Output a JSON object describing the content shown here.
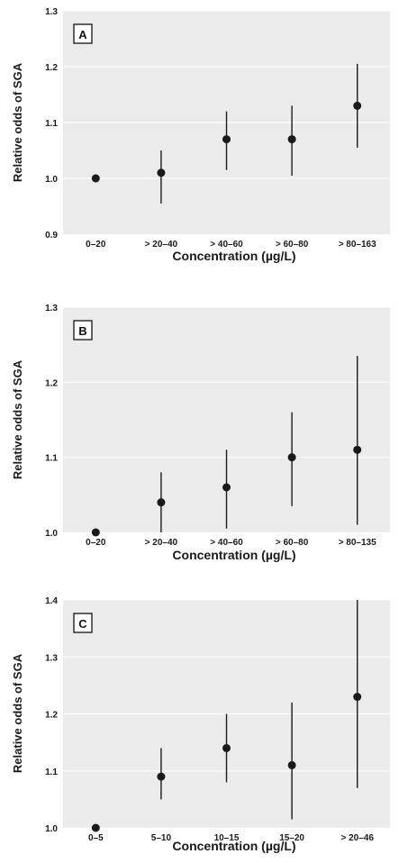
{
  "chart_data": [
    {
      "type": "scatter",
      "panel_label": "A",
      "xlabel": "Concentration (µg/L)",
      "ylabel": "Relative odds of SGA",
      "categories": [
        "0–20",
        "> 20–40",
        "> 40–60",
        "> 60–80",
        "> 80–163"
      ],
      "y": [
        1.0,
        1.01,
        1.07,
        1.07,
        1.13
      ],
      "ci_lower": [
        1.0,
        0.955,
        1.015,
        1.005,
        1.055
      ],
      "ci_upper": [
        1.0,
        1.05,
        1.12,
        1.13,
        1.205
      ],
      "ylim": [
        0.9,
        1.3
      ],
      "yticks": [
        0.9,
        1.0,
        1.1,
        1.2,
        1.3
      ],
      "ytick_labels": [
        "0.9",
        "1.0",
        "1.1",
        "1.2",
        "1.3"
      ],
      "grid": "horizontal"
    },
    {
      "type": "scatter",
      "panel_label": "B",
      "xlabel": "Concentration (µg/L)",
      "ylabel": "Relative odds of SGA",
      "categories": [
        "0–20",
        "> 20–40",
        "> 40–60",
        "> 60–80",
        "> 80–135"
      ],
      "y": [
        1.0,
        1.04,
        1.06,
        1.1,
        1.11
      ],
      "ci_lower": [
        1.0,
        1.0,
        1.005,
        1.035,
        1.01
      ],
      "ci_upper": [
        1.0,
        1.08,
        1.11,
        1.16,
        1.235
      ],
      "ylim": [
        1.0,
        1.3
      ],
      "yticks": [
        1.0,
        1.1,
        1.2,
        1.3
      ],
      "ytick_labels": [
        "1.0",
        "1.1",
        "1.2",
        "1.3"
      ],
      "grid": "horizontal"
    },
    {
      "type": "scatter",
      "panel_label": "C",
      "xlabel": "Concentration (µg/L)",
      "ylabel": "Relative odds of SGA",
      "categories": [
        "0–5",
        "5–10",
        "10–15",
        "15–20",
        "> 20–46"
      ],
      "y": [
        1.0,
        1.09,
        1.14,
        1.11,
        1.23
      ],
      "ci_lower": [
        1.0,
        1.05,
        1.08,
        1.015,
        1.07
      ],
      "ci_upper": [
        1.0,
        1.14,
        1.2,
        1.22,
        1.4
      ],
      "ylim": [
        1.0,
        1.4
      ],
      "yticks": [
        1.0,
        1.1,
        1.2,
        1.3,
        1.4
      ],
      "ytick_labels": [
        "1.0",
        "1.1",
        "1.2",
        "1.3",
        "1.4"
      ],
      "grid": "horizontal"
    }
  ],
  "colors": {
    "plot_background": "#ebebeb",
    "grid": "#ffffff",
    "marker": "#1a1a1a"
  }
}
